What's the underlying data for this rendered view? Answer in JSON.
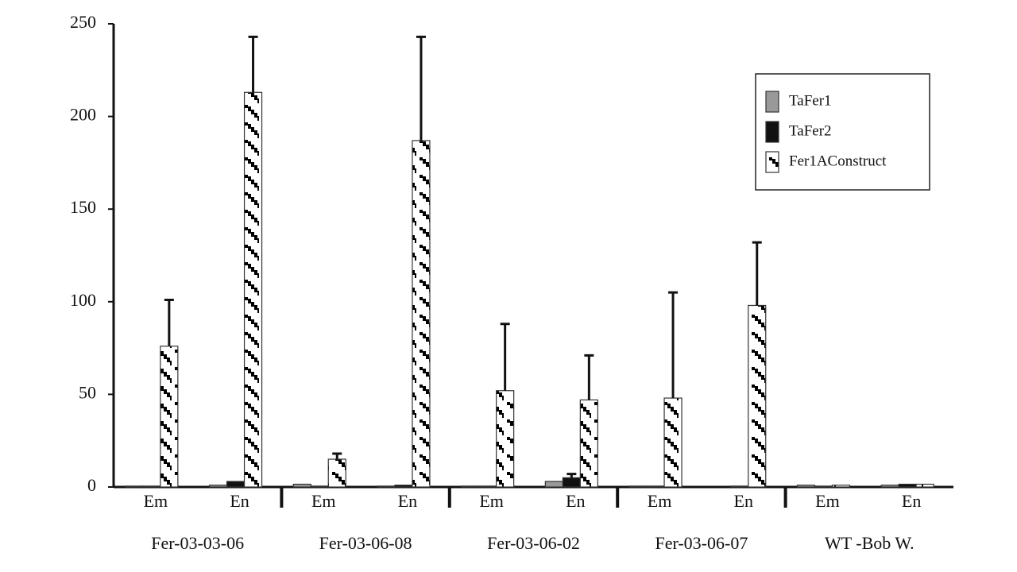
{
  "chart_data": {
    "type": "bar",
    "categories": [
      "Em",
      "En",
      "Em",
      "En",
      "Em",
      "En",
      "Em",
      "En",
      "Em",
      "En"
    ],
    "groups": [
      "Fer-03-03-06",
      "Fer-03-06-08",
      "Fer-03-06-02",
      "Fer-03-06-07",
      "WT -Bob W."
    ],
    "series": [
      {
        "name": "TaFer1",
        "color": "#999999",
        "values": [
          0.5,
          1,
          1.5,
          0.5,
          0.5,
          3,
          0.5,
          0,
          1,
          1
        ]
      },
      {
        "name": "TaFer2",
        "color": "#111111",
        "values": [
          0.5,
          3,
          0.5,
          1,
          0.5,
          5,
          0.5,
          0.5,
          0.5,
          1.5
        ],
        "errors": [
          null,
          null,
          null,
          null,
          null,
          2,
          null,
          null,
          null,
          null
        ]
      },
      {
        "name": "Fer1AConstruct",
        "color": "#000000",
        "hatch": true,
        "values": [
          76,
          213,
          15,
          187,
          52,
          47,
          48,
          98,
          1,
          1.5
        ],
        "errors": [
          25,
          30,
          3,
          56,
          36,
          24,
          57,
          34,
          null,
          null
        ]
      }
    ],
    "ylim": [
      0,
      250
    ],
    "yticks": [
      0,
      50,
      100,
      150,
      200,
      250
    ],
    "grid": false,
    "legend": "upper right"
  }
}
